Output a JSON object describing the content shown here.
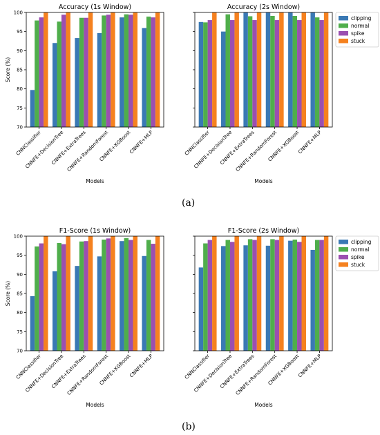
{
  "captions": {
    "a": "(a)",
    "b": "(b)"
  },
  "colors": {
    "clipping": "#3a79b4",
    "normal": "#4fae4b",
    "spike": "#9b4fb0",
    "stuck": "#f5811f"
  },
  "chart_data": [
    {
      "type": "bar",
      "title": "Accuracy (1s Window)",
      "xlabel": "Models",
      "ylabel": "Score (%)",
      "ylim": [
        70,
        100
      ],
      "yticks": [
        "70",
        "75",
        "80",
        "85",
        "90",
        "95",
        "100"
      ],
      "categories": [
        "CNNClassifier",
        "CNNFE+DecisionTree",
        "CNNFE+ExtraTrees",
        "CNNFE+RandomForest",
        "CNNFE+XGBoost",
        "CNNFE+MLP"
      ],
      "series": [
        {
          "name": "clipping",
          "values": [
            79.7,
            92.0,
            93.3,
            94.6,
            98.7,
            95.9
          ]
        },
        {
          "name": "normal",
          "values": [
            97.9,
            97.6,
            98.6,
            99.2,
            99.5,
            98.9
          ]
        },
        {
          "name": "spike",
          "values": [
            98.7,
            99.4,
            98.6,
            99.4,
            99.4,
            98.7
          ]
        },
        {
          "name": "stuck",
          "values": [
            100,
            100,
            100,
            100,
            100,
            100
          ]
        }
      ],
      "grid": false
    },
    {
      "type": "bar",
      "title": "Accuracy (2s Window)",
      "xlabel": "Models",
      "ylabel": "",
      "ylim": [
        70,
        100
      ],
      "categories": [
        "CNNClassifier",
        "CNNFE+DecisionTree",
        "CNNFE+ExtraTrees",
        "CNNFE+RandomForest",
        "CNNFE+XGBoost",
        "CNNFE+MLP"
      ],
      "series": [
        {
          "name": "clipping",
          "values": [
            97.5,
            95.0,
            100,
            100,
            100,
            100
          ]
        },
        {
          "name": "normal",
          "values": [
            97.4,
            99.5,
            99.0,
            99.1,
            99.1,
            98.7
          ]
        },
        {
          "name": "spike",
          "values": [
            98.0,
            98.0,
            98.0,
            98.0,
            98.0,
            98.0
          ]
        },
        {
          "name": "stuck",
          "values": [
            100,
            100,
            100,
            100,
            100,
            100
          ]
        }
      ],
      "legend": "top-right",
      "grid": false
    },
    {
      "type": "bar",
      "title": "F1-Score (1s Window)",
      "xlabel": "Models",
      "ylabel": "Score (%)",
      "ylim": [
        70,
        100
      ],
      "yticks": [
        "70",
        "75",
        "80",
        "85",
        "90",
        "95",
        "100"
      ],
      "categories": [
        "CNNClassifier",
        "CNNFE+DecisionTree",
        "CNNFE+ExtraTrees",
        "CNNFE+RandomForest",
        "CNNFE+XGBoost",
        "CNNFE+MLP"
      ],
      "series": [
        {
          "name": "clipping",
          "values": [
            84.3,
            90.8,
            92.2,
            94.7,
            98.7,
            94.8
          ]
        },
        {
          "name": "normal",
          "values": [
            97.3,
            98.2,
            98.6,
            99.1,
            99.5,
            99.0
          ]
        },
        {
          "name": "spike",
          "values": [
            98.1,
            97.9,
            98.7,
            99.4,
            99.0,
            98.0
          ]
        },
        {
          "name": "stuck",
          "values": [
            100,
            100,
            100,
            100,
            100,
            100
          ]
        }
      ],
      "grid": false
    },
    {
      "type": "bar",
      "title": "F1-Score (2s Window)",
      "xlabel": "Models",
      "ylabel": "",
      "ylim": [
        70,
        100
      ],
      "categories": [
        "CNNClassifier",
        "CNNFE+DecisionTree",
        "CNNFE+ExtraTrees",
        "CNNFE+RandomForest",
        "CNNFE+XGBoost",
        "CNNFE+MLP"
      ],
      "series": [
        {
          "name": "clipping",
          "values": [
            91.8,
            97.4,
            97.6,
            97.5,
            98.8,
            96.4
          ]
        },
        {
          "name": "normal",
          "values": [
            98.1,
            99.0,
            99.2,
            99.2,
            99.1,
            99.0
          ]
        },
        {
          "name": "spike",
          "values": [
            99.0,
            98.5,
            99.0,
            99.0,
            98.5,
            99.0
          ]
        },
        {
          "name": "stuck",
          "values": [
            100,
            100,
            100,
            100,
            100,
            100
          ]
        }
      ],
      "legend": "top-right",
      "grid": false
    }
  ]
}
